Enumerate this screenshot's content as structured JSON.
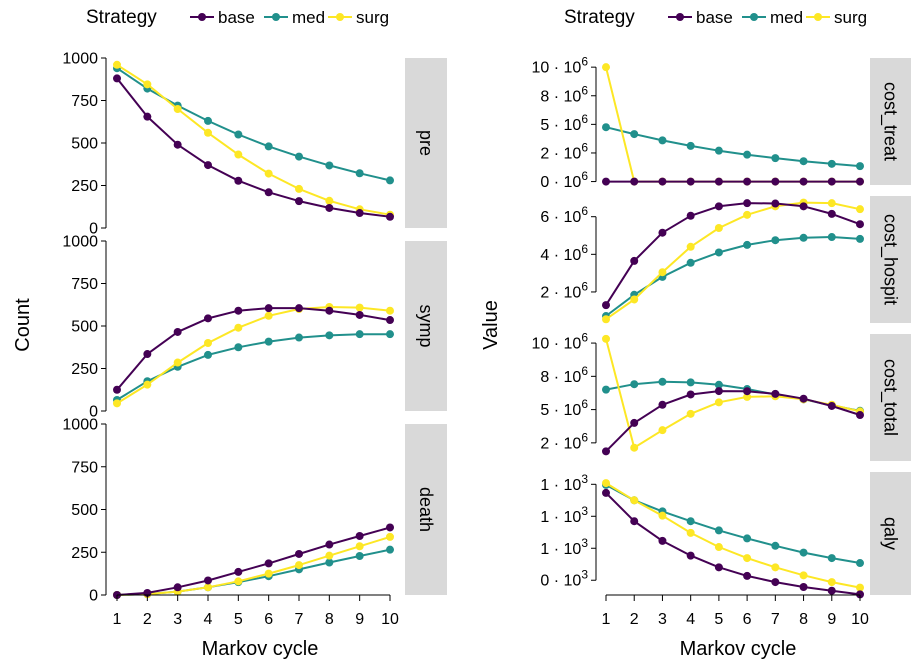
{
  "legend": {
    "title": "Strategy",
    "items": [
      {
        "label": "base",
        "color": "#440154"
      },
      {
        "label": "med",
        "color": "#21908C"
      },
      {
        "label": "surg",
        "color": "#FDE725"
      }
    ]
  },
  "chart_data": [
    {
      "type": "line",
      "xlabel": "Markov cycle",
      "ylabel": "Count",
      "x": [
        1,
        2,
        3,
        4,
        5,
        6,
        7,
        8,
        9,
        10
      ],
      "x_ticks": [
        "1",
        "2",
        "3",
        "4",
        "5",
        "6",
        "7",
        "8",
        "9",
        "10"
      ],
      "legend_position": "top",
      "grid": false,
      "panels": [
        {
          "strip": "pre",
          "ylim": [
            0,
            1000
          ],
          "y_ticks": [
            0,
            250,
            500,
            750,
            1000
          ],
          "y_tick_labels": [
            "0",
            "250",
            "500",
            "750",
            "1000"
          ],
          "series": [
            {
              "name": "base",
              "values": [
                880,
                655,
                490,
                370,
                278,
                210,
                158,
                118,
                88,
                66
              ]
            },
            {
              "name": "med",
              "values": [
                940,
                820,
                720,
                630,
                550,
                480,
                420,
                368,
                322,
                280
              ]
            },
            {
              "name": "surg",
              "values": [
                960,
                845,
                700,
                560,
                432,
                320,
                230,
                160,
                110,
                78
              ]
            }
          ]
        },
        {
          "strip": "symp",
          "ylim": [
            0,
            1000
          ],
          "y_ticks": [
            0,
            250,
            500,
            750,
            1000
          ],
          "y_tick_labels": [
            "0",
            "250",
            "500",
            "750",
            "1000"
          ],
          "series": [
            {
              "name": "base",
              "values": [
                125,
                335,
                465,
                545,
                590,
                605,
                605,
                590,
                565,
                535
              ]
            },
            {
              "name": "med",
              "values": [
                65,
                175,
                260,
                330,
                375,
                408,
                432,
                445,
                452,
                452
              ]
            },
            {
              "name": "surg",
              "values": [
                45,
                155,
                285,
                400,
                490,
                560,
                600,
                612,
                608,
                590
              ]
            }
          ]
        },
        {
          "strip": "death",
          "ylim": [
            0,
            1000
          ],
          "y_ticks": [
            0,
            250,
            500,
            750,
            1000
          ],
          "y_tick_labels": [
            "0",
            "250",
            "500",
            "750",
            "1000"
          ],
          "series": [
            {
              "name": "base",
              "values": [
                0,
                12,
                45,
                85,
                135,
                185,
                240,
                295,
                345,
                395
              ]
            },
            {
              "name": "med",
              "values": [
                0,
                5,
                20,
                45,
                75,
                110,
                150,
                190,
                228,
                265
              ]
            },
            {
              "name": "surg",
              "values": [
                0,
                5,
                20,
                45,
                80,
                125,
                175,
                230,
                285,
                340
              ]
            }
          ]
        }
      ]
    },
    {
      "type": "line",
      "xlabel": "Markov cycle",
      "ylabel": "Value",
      "x": [
        1,
        2,
        3,
        4,
        5,
        6,
        7,
        8,
        9,
        10
      ],
      "x_ticks": [
        "1",
        "2",
        "3",
        "4",
        "5",
        "6",
        "7",
        "8",
        "9",
        "10"
      ],
      "legend_position": "top",
      "grid": false,
      "panels": [
        {
          "strip": "cost_treat",
          "ylim": [
            -300000,
            10800000
          ],
          "y_ticks": [
            0,
            2500000,
            5000000,
            7500000,
            10000000
          ],
          "y_tick_labels": [
            {
              "m": "0",
              "e": "6"
            },
            {
              "m": "2",
              "e": "6"
            },
            {
              "m": "5",
              "e": "6"
            },
            {
              "m": "8",
              "e": "6"
            },
            {
              "m": "10",
              "e": "6"
            }
          ],
          "series": [
            {
              "name": "base",
              "values": [
                0,
                0,
                0,
                0,
                0,
                0,
                0,
                0,
                0,
                0
              ]
            },
            {
              "name": "med",
              "values": [
                4750000,
                4150000,
                3600000,
                3120000,
                2700000,
                2350000,
                2050000,
                1780000,
                1550000,
                1350000
              ]
            },
            {
              "name": "surg",
              "values": [
                10000000,
                0,
                0,
                0,
                0,
                0,
                0,
                0,
                0,
                0
              ]
            }
          ]
        },
        {
          "strip": "cost_hospit",
          "ylim": [
            350000,
            7100000
          ],
          "y_ticks": [
            2000000,
            4000000,
            6000000
          ],
          "y_tick_labels": [
            {
              "m": "2",
              "e": "6"
            },
            {
              "m": "4",
              "e": "6"
            },
            {
              "m": "6",
              "e": "6"
            }
          ],
          "series": [
            {
              "name": "base",
              "values": [
                1300000,
                3650000,
                5150000,
                6050000,
                6550000,
                6720000,
                6700000,
                6550000,
                6150000,
                5600000
              ]
            },
            {
              "name": "med",
              "values": [
                720000,
                1850000,
                2800000,
                3550000,
                4100000,
                4500000,
                4750000,
                4880000,
                4920000,
                4820000
              ]
            },
            {
              "name": "surg",
              "values": [
                550000,
                1600000,
                3050000,
                4400000,
                5400000,
                6100000,
                6550000,
                6750000,
                6720000,
                6400000
              ]
            }
          ]
        },
        {
          "strip": "cost_total",
          "ylim": [
            500000,
            11000000
          ],
          "y_ticks": [
            2000000,
            4750000,
            7500000,
            10250000
          ],
          "y_tick_labels": [
            {
              "m": "2",
              "e": "6"
            },
            {
              "m": "5",
              "e": "6"
            },
            {
              "m": "8",
              "e": "6"
            },
            {
              "m": "10",
              "e": "6"
            }
          ],
          "series": [
            {
              "name": "base",
              "values": [
                1300000,
                3650000,
                5150000,
                6000000,
                6280000,
                6270000,
                6050000,
                5650000,
                5050000,
                4300000
              ]
            },
            {
              "name": "med",
              "values": [
                6400000,
                6850000,
                7050000,
                7000000,
                6800000,
                6450000,
                6000000,
                5600000,
                5100000,
                4650000
              ]
            },
            {
              "name": "surg",
              "values": [
                10600000,
                1600000,
                3050000,
                4400000,
                5350000,
                5800000,
                5850000,
                5600000,
                5150000,
                4600000
              ]
            }
          ]
        },
        {
          "strip": "qaly",
          "ylim": [
            -50,
            950
          ],
          "y_ticks": [
            70,
            330,
            590,
            850
          ],
          "y_tick_labels": [
            {
              "m": "0",
              "e": "3"
            },
            {
              "m": "1",
              "e": "3"
            },
            {
              "m": "1",
              "e": "3"
            },
            {
              "m": "1",
              "e": "3"
            }
          ],
          "series": [
            {
              "name": "base",
              "values": [
                780,
                550,
                390,
                270,
                175,
                105,
                55,
                15,
                -15,
                -45
              ]
            },
            {
              "name": "med",
              "values": [
                845,
                720,
                630,
                550,
                475,
                410,
                350,
                295,
                250,
                210
              ]
            },
            {
              "name": "surg",
              "values": [
                860,
                720,
                595,
                455,
                340,
                250,
                175,
                110,
                55,
                10
              ]
            }
          ]
        }
      ]
    }
  ]
}
